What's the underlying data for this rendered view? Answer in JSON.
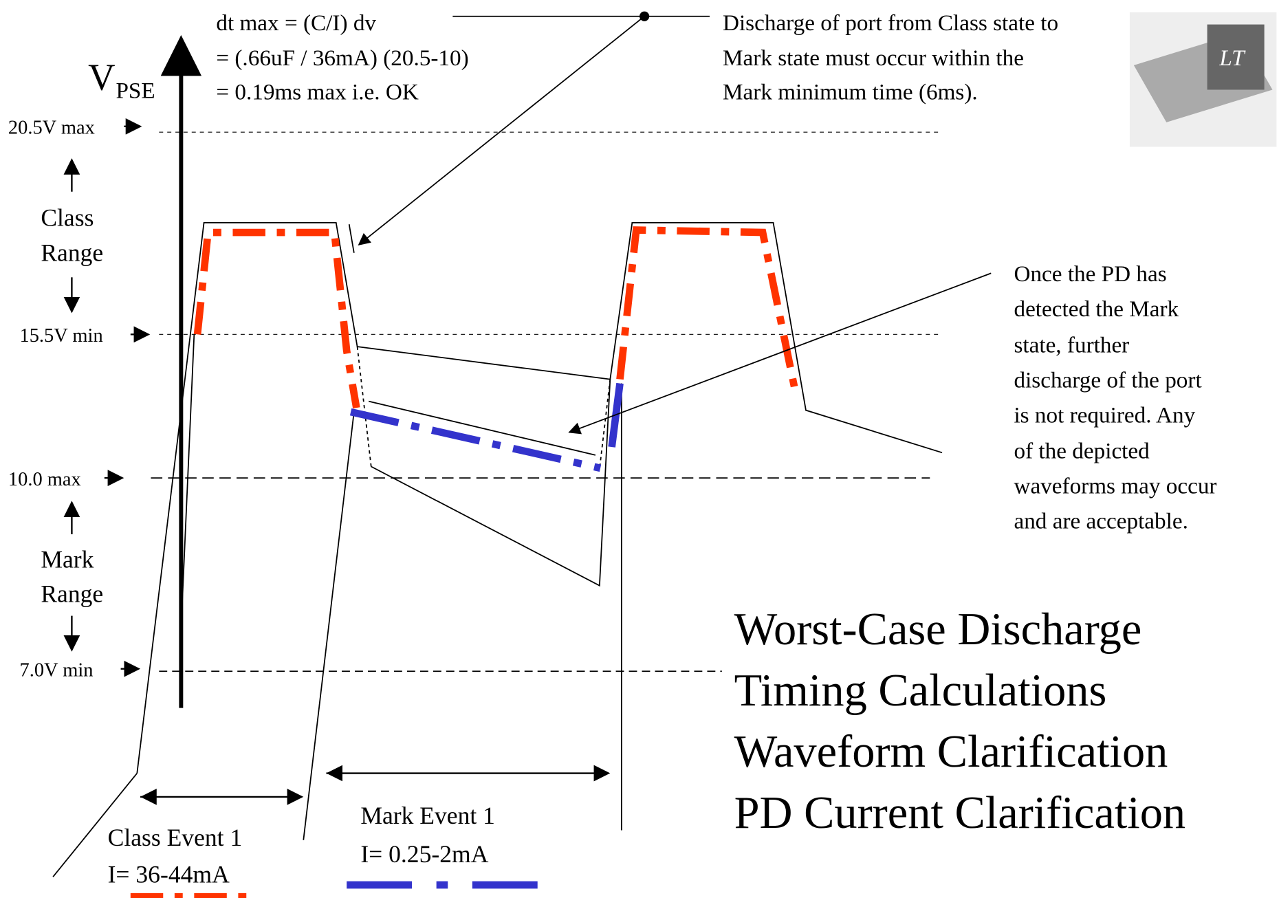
{
  "formula": [
    "dt max = (C/I) dv",
    "= (.66uF / 36mA) (20.5-10)",
    "= 0.19ms max i.e. OK"
  ],
  "axis_label": {
    "main": "V",
    "sub": "PSE"
  },
  "levels": [
    "20.5V max",
    "15.5V min",
    "10.0 max",
    "7.0V min"
  ],
  "ranges": [
    [
      "Class",
      "Range"
    ],
    [
      "Mark",
      "Range"
    ]
  ],
  "note_top": [
    "Discharge of port from Class state to",
    "Mark state must occur within the",
    "Mark minimum time (6ms)."
  ],
  "note_right": [
    "Once the PD has",
    "detected the Mark",
    "state, further",
    "discharge of the port",
    "is not required.  Any",
    "of the depicted",
    "waveforms may occur",
    "and are acceptable."
  ],
  "title": [
    "Worst-Case Discharge",
    "Timing Calculations",
    "Waveform Clarification",
    "PD Current Clarification"
  ],
  "events": [
    {
      "name": "Class Event 1",
      "current": "I= 36-44mA"
    },
    {
      "name": "Mark Event 1",
      "current": "I= 0.25-2mA"
    }
  ]
}
